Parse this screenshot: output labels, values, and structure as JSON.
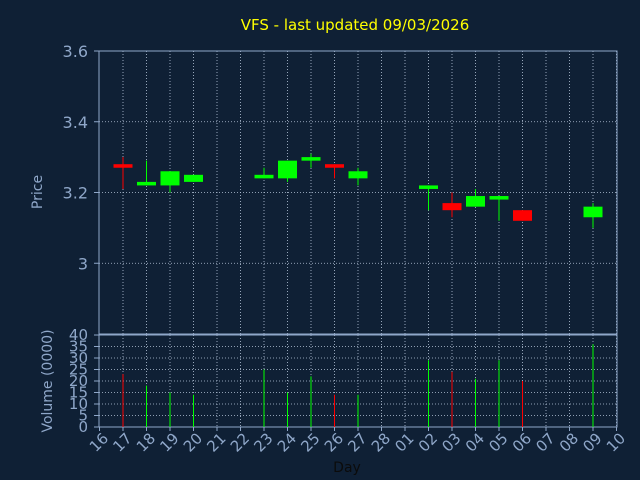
{
  "chart_data": [
    {
      "type": "candlestick",
      "title": "VFS - last updated 09/03/2026",
      "ylabel": "Price",
      "ylim": [
        2.8,
        3.6
      ],
      "yticks": [
        "3.6",
        "3.4",
        "3.2",
        "3"
      ],
      "grid": true,
      "x_categories": [
        "16",
        "17",
        "18",
        "19",
        "20",
        "21",
        "22",
        "23",
        "24",
        "25",
        "26",
        "27",
        "28",
        "01",
        "02",
        "03",
        "04",
        "05",
        "06",
        "07",
        "08",
        "09",
        "10"
      ],
      "candles": [
        {
          "day": "17",
          "open": 3.28,
          "high": 3.3,
          "low": 3.21,
          "close": 3.27,
          "color": "#ff0000"
        },
        {
          "day": "18",
          "open": 3.22,
          "high": 3.29,
          "low": 3.22,
          "close": 3.23,
          "color": "#00ff00"
        },
        {
          "day": "19",
          "open": 3.22,
          "high": 3.26,
          "low": 3.2,
          "close": 3.26,
          "color": "#00ff00"
        },
        {
          "day": "20",
          "open": 3.23,
          "high": 3.25,
          "low": 3.23,
          "close": 3.25,
          "color": "#00ff00"
        },
        {
          "day": "23",
          "open": 3.24,
          "high": 3.27,
          "low": 3.24,
          "close": 3.25,
          "color": "#00ff00"
        },
        {
          "day": "24",
          "open": 3.24,
          "high": 3.29,
          "low": 3.23,
          "close": 3.29,
          "color": "#00ff00"
        },
        {
          "day": "25",
          "open": 3.29,
          "high": 3.31,
          "low": 3.27,
          "close": 3.3,
          "color": "#00ff00"
        },
        {
          "day": "26",
          "open": 3.28,
          "high": 3.28,
          "low": 3.24,
          "close": 3.27,
          "color": "#ff0000"
        },
        {
          "day": "27",
          "open": 3.24,
          "high": 3.27,
          "low": 3.22,
          "close": 3.26,
          "color": "#00ff00"
        },
        {
          "day": "02",
          "open": 3.21,
          "high": 3.22,
          "low": 3.15,
          "close": 3.22,
          "color": "#00ff00"
        },
        {
          "day": "03",
          "open": 3.17,
          "high": 3.2,
          "low": 3.13,
          "close": 3.15,
          "color": "#ff0000"
        },
        {
          "day": "04",
          "open": 3.16,
          "high": 3.21,
          "low": 3.16,
          "close": 3.19,
          "color": "#00ff00"
        },
        {
          "day": "05",
          "open": 3.18,
          "high": 3.19,
          "low": 3.12,
          "close": 3.19,
          "color": "#00ff00"
        },
        {
          "day": "06",
          "open": 3.15,
          "high": 3.15,
          "low": 3.12,
          "close": 3.12,
          "color": "#ff0000"
        },
        {
          "day": "09",
          "open": 3.13,
          "high": 3.17,
          "low": 3.1,
          "close": 3.16,
          "color": "#00ff00"
        }
      ]
    },
    {
      "type": "bar",
      "ylabel": "Volume (0000)",
      "xlabel": "Day",
      "ylim": [
        0,
        40
      ],
      "yticks": [
        "40",
        "35",
        "30",
        "25",
        "20",
        "15",
        "10",
        "5",
        "0"
      ],
      "grid": true,
      "bars": [
        {
          "day": "17",
          "value": 23,
          "color": "#ff0000"
        },
        {
          "day": "18",
          "value": 18,
          "color": "#00ff00"
        },
        {
          "day": "19",
          "value": 15,
          "color": "#00ff00"
        },
        {
          "day": "20",
          "value": 14,
          "color": "#00ff00"
        },
        {
          "day": "23",
          "value": 25,
          "color": "#00ff00"
        },
        {
          "day": "24",
          "value": 15,
          "color": "#00ff00"
        },
        {
          "day": "25",
          "value": 22,
          "color": "#00ff00"
        },
        {
          "day": "26",
          "value": 14,
          "color": "#ff0000"
        },
        {
          "day": "27",
          "value": 14,
          "color": "#00ff00"
        },
        {
          "day": "02",
          "value": 29,
          "color": "#00ff00"
        },
        {
          "day": "03",
          "value": 24,
          "color": "#ff0000"
        },
        {
          "day": "04",
          "value": 21,
          "color": "#00ff00"
        },
        {
          "day": "05",
          "value": 29,
          "color": "#00ff00"
        },
        {
          "day": "06",
          "value": 20,
          "color": "#ff0000"
        },
        {
          "day": "09",
          "value": 36,
          "color": "#00ff00"
        }
      ]
    }
  ],
  "colors": {
    "background": "#0f2035",
    "axis": "#8fa7c9",
    "grid": "#b9c7dc",
    "title": "#ffff00"
  }
}
